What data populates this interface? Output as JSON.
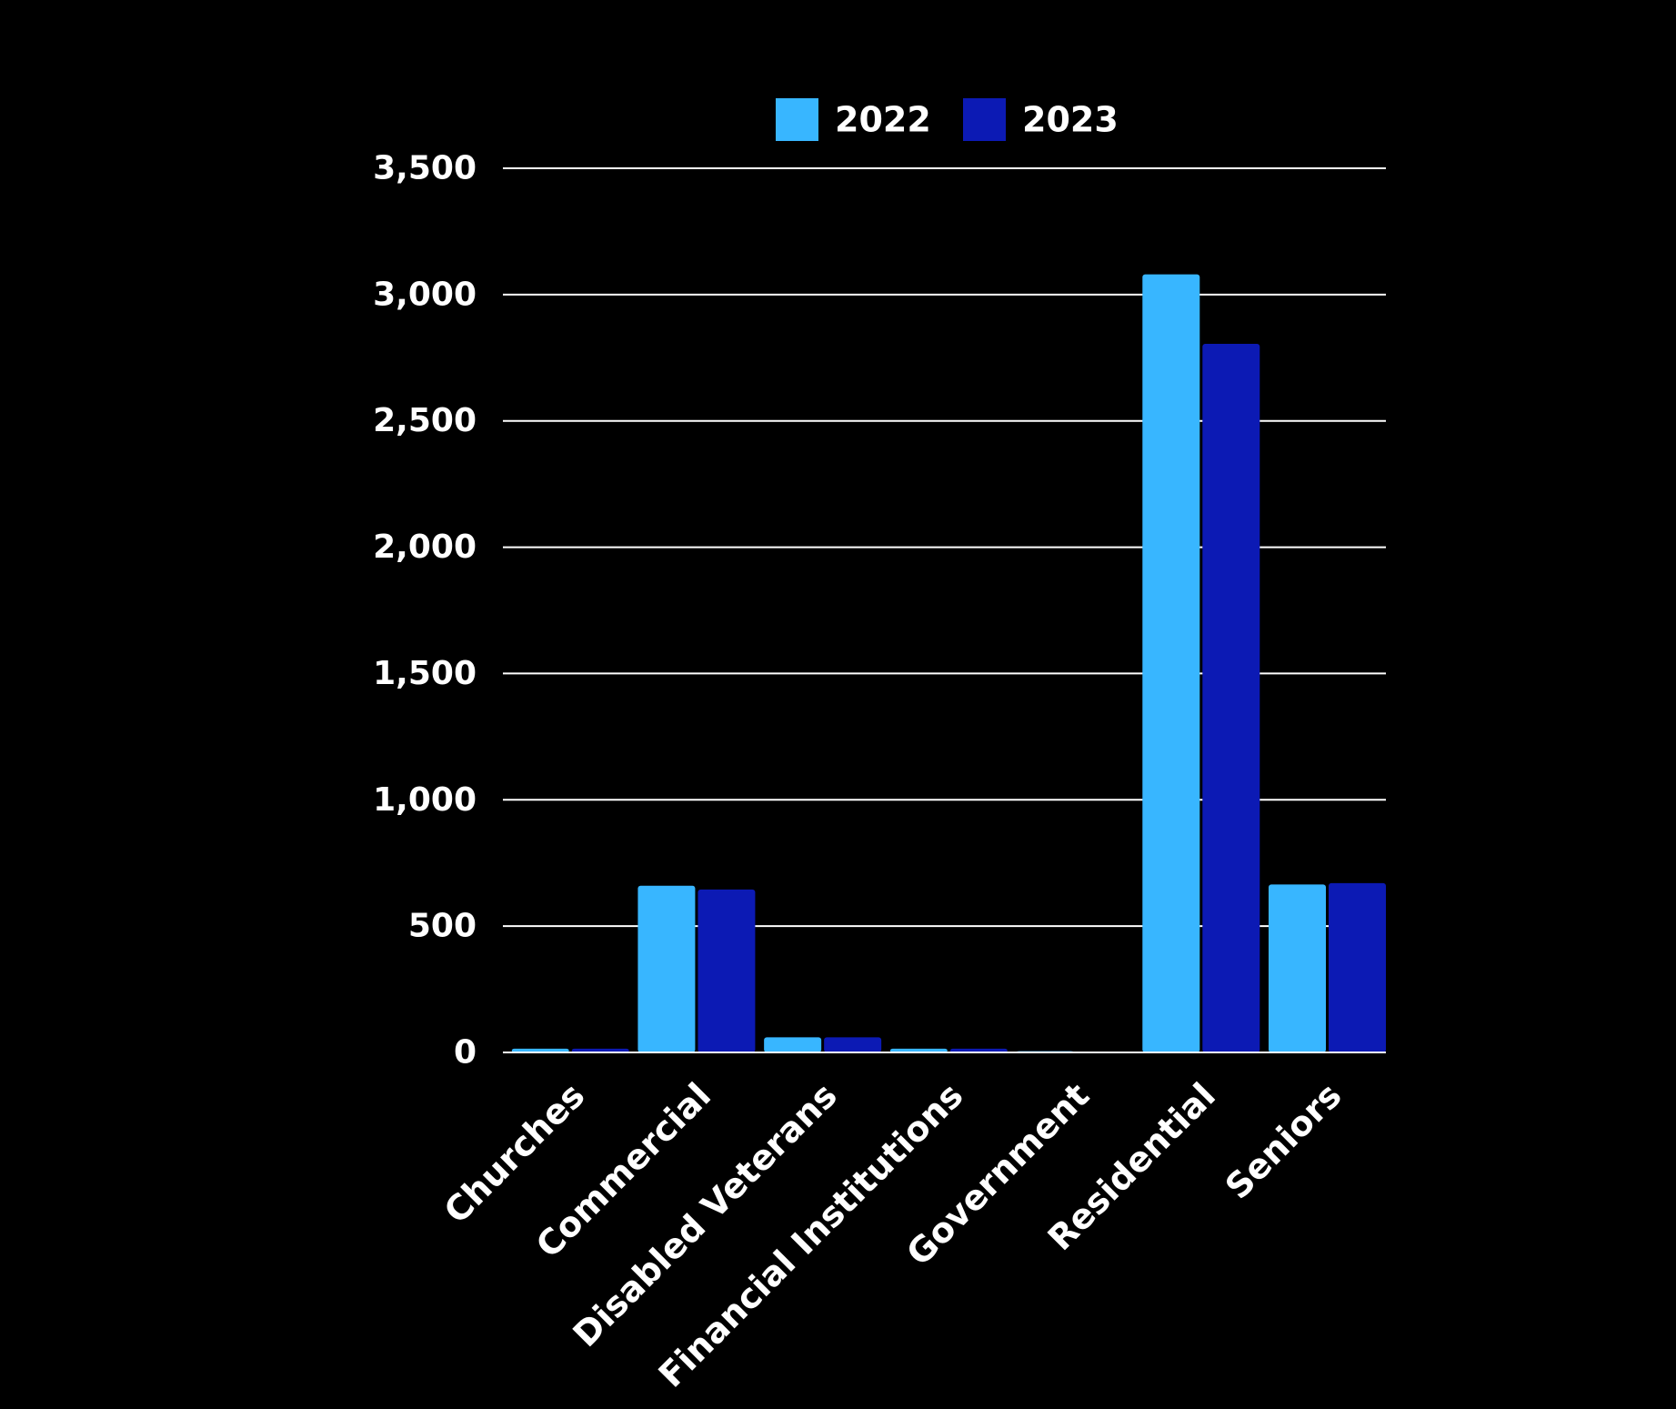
{
  "chart_data": {
    "type": "bar",
    "categories": [
      "Churches",
      "Commercial",
      "Disabled Veterans",
      "Financial Institutions",
      "Government",
      "Residential",
      "Seniors"
    ],
    "series": [
      {
        "name": "2022",
        "color": "#38B6FF",
        "values": [
          15,
          660,
          60,
          15,
          5,
          3080,
          665
        ]
      },
      {
        "name": "2023",
        "color": "#0C1AB4",
        "values": [
          15,
          645,
          60,
          15,
          3,
          2805,
          670
        ]
      }
    ],
    "title": "",
    "xlabel": "",
    "ylabel": "",
    "ylim": [
      0,
      3500
    ],
    "yticks": [
      0,
      500,
      1000,
      1500,
      2000,
      2500,
      3000,
      3500
    ],
    "ytick_labels": [
      "0",
      "500",
      "1,000",
      "1,500",
      "2,000",
      "2,500",
      "3,000",
      "3,500"
    ],
    "grid": true,
    "legend_position": "top-center",
    "colors": {
      "background": "#000000",
      "text": "#ffffff",
      "grid": "#ffffff"
    }
  }
}
